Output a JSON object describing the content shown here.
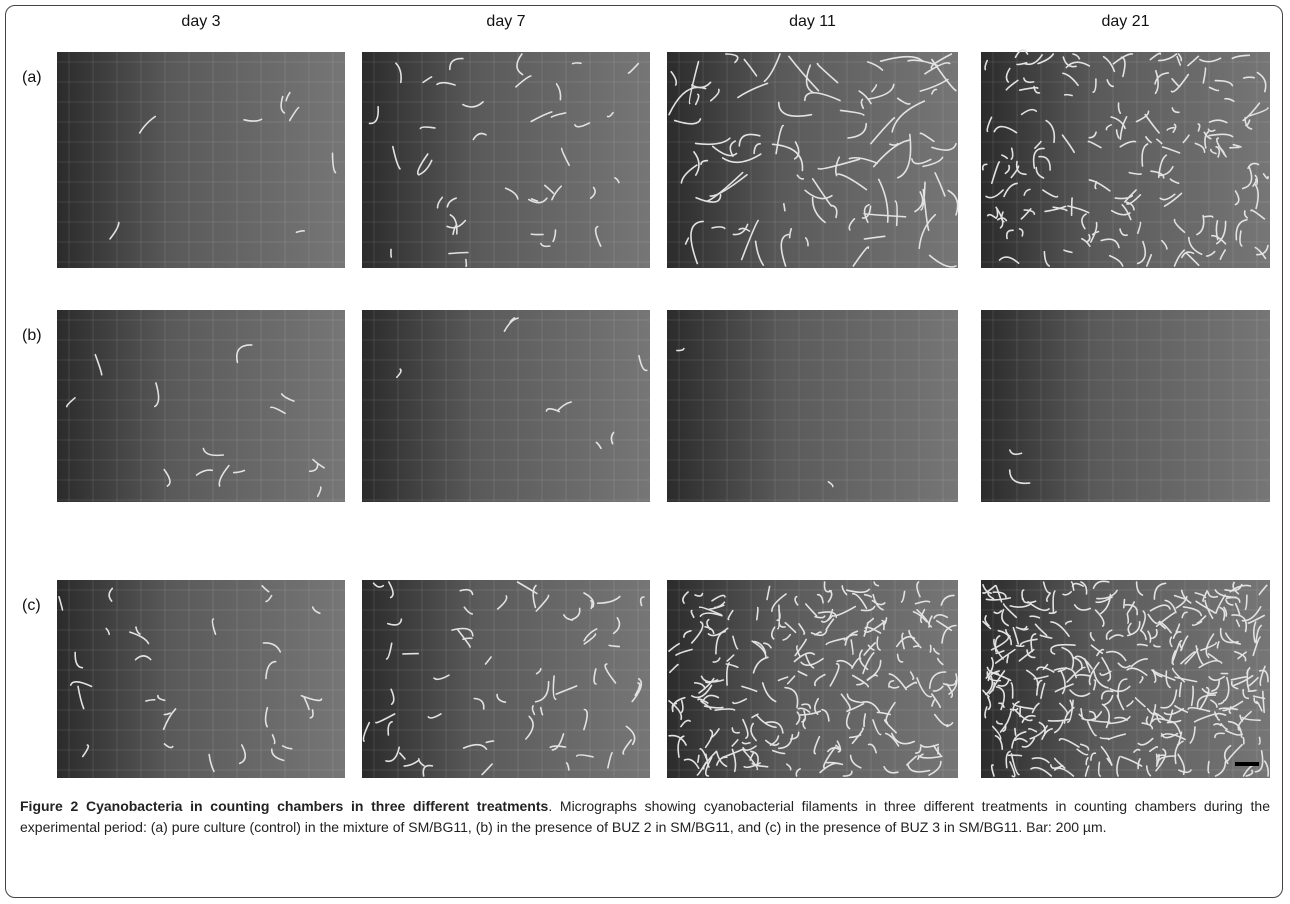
{
  "figure": {
    "columns": [
      "day 3",
      "day 7",
      "day 11",
      "day 21"
    ],
    "rows": [
      "(a)",
      "(b)",
      "(c)"
    ],
    "caption": {
      "title": "Figure 2 Cyanobacteria in counting chambers in three different treatments",
      "text": ". Micrographs showing cyanobacterial filaments in three different treatments in counting chambers during the experimental period: (a) pure culture (control) in the mixture of SM/BG11, (b) in the presence of BUZ 2 in SM/BG11, and (c) in the presence of BUZ 3 in SM/BG11. Bar: 200 µm."
    }
  }
}
